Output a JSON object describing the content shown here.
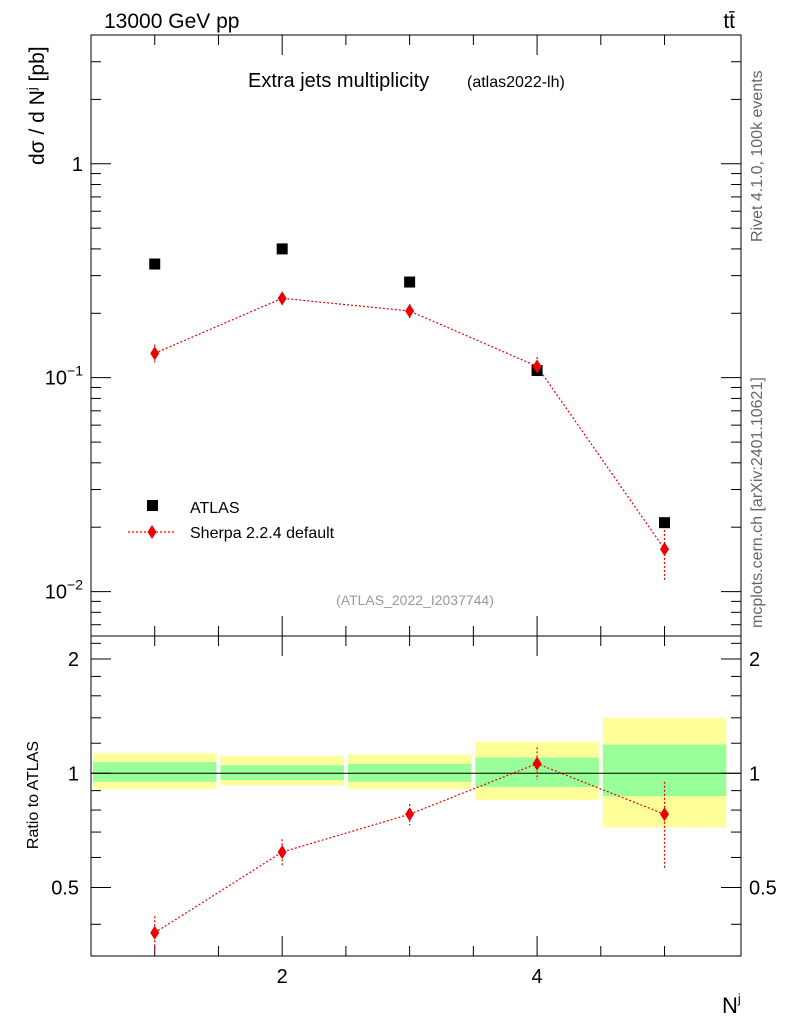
{
  "header": {
    "energy_label": "13000 GeV pp",
    "process_label": "tt̄"
  },
  "side": {
    "rivet_label": "Rivet 4.1.0,  100k events",
    "mcplots_label": "mcplots.cern.ch [arXiv:2401.10621]"
  },
  "chart_data": {
    "type": "scatter",
    "title": "Extra jets multiplicity",
    "title_tag": "(atlas2022-lh)",
    "analysis_id": "(ATLAS_2022_I2037744)",
    "ylabel_main": "dσ / d N^j [pb]",
    "ylabel_ratio": "Ratio to ATLAS",
    "xlabel": "N^j",
    "yscale": "log",
    "ylim_main": [
      0.0062,
      4.0
    ],
    "ylim_ratio": [
      0.33,
      2.3
    ],
    "xlim": [
      0.5,
      5.6
    ],
    "x_ticks": [
      "2",
      "4"
    ],
    "y_ticks_main": [
      {
        "value": 1,
        "label": "1"
      },
      {
        "value": 0.1,
        "label": "10^-1"
      },
      {
        "value": 0.01,
        "label": "10^-2"
      }
    ],
    "y_ticks_ratio": [
      "2",
      "1",
      "0.5"
    ],
    "legend": [
      {
        "label": "ATLAS",
        "marker": "square"
      },
      {
        "label": "Sherpa 2.2.4 default",
        "marker": "diamond"
      }
    ],
    "colors": {
      "data": "#000000",
      "mc": "#ee0000",
      "band_inner": "#99ff99",
      "band_outer": "#ffff99"
    },
    "x": [
      1,
      2,
      3,
      4,
      5
    ],
    "bins": [
      [
        0.5,
        1.5
      ],
      [
        1.5,
        2.5
      ],
      [
        2.5,
        3.5
      ],
      [
        3.5,
        4.5
      ],
      [
        4.5,
        5.5
      ]
    ],
    "series": [
      {
        "name": "ATLAS",
        "values": [
          0.34,
          0.4,
          0.28,
          0.108,
          0.021
        ],
        "ratio_band_inner": [
          [
            0.95,
            1.07
          ],
          [
            0.96,
            1.05
          ],
          [
            0.95,
            1.06
          ],
          [
            0.92,
            1.1
          ],
          [
            0.87,
            1.19
          ]
        ],
        "ratio_band_outer": [
          [
            0.91,
            1.13
          ],
          [
            0.93,
            1.11
          ],
          [
            0.91,
            1.12
          ],
          [
            0.85,
            1.21
          ],
          [
            0.72,
            1.4
          ]
        ]
      },
      {
        "name": "Sherpa 2.2.4 default",
        "values": [
          0.13,
          0.235,
          0.205,
          0.113,
          0.0158
        ],
        "err_low": [
          0.012,
          0.016,
          0.015,
          0.011,
          0.0045
        ],
        "err_high": [
          0.013,
          0.017,
          0.016,
          0.012,
          0.0045
        ],
        "ratio": [
          0.38,
          0.62,
          0.78,
          1.06,
          0.78
        ],
        "ratio_err_low": [
          0.04,
          0.05,
          0.05,
          0.1,
          0.22
        ],
        "ratio_err_high": [
          0.04,
          0.05,
          0.05,
          0.11,
          0.17
        ]
      }
    ]
  }
}
